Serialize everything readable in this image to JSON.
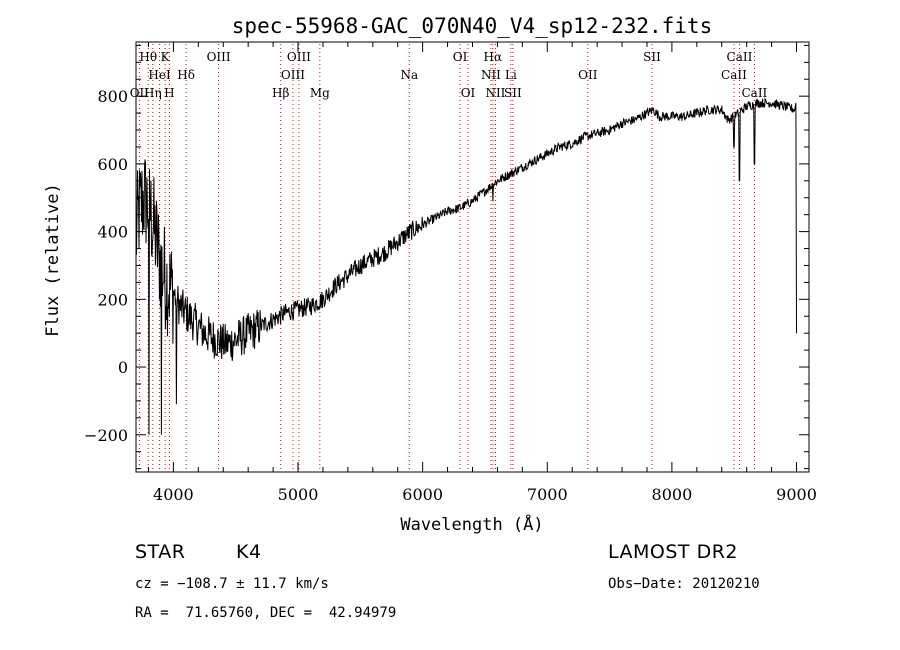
{
  "chart_data": {
    "type": "line",
    "title": "spec-55968-GAC_070N40_V4_sp12-232.fits",
    "xlabel": "Wavelength (Å)",
    "ylabel": "Flux (relative)",
    "xlim": [
      3700,
      9100
    ],
    "ylim": [
      -310,
      960
    ],
    "x_ticks": [
      4000,
      5000,
      6000,
      7000,
      8000,
      9000
    ],
    "y_ticks": [
      -200,
      0,
      200,
      400,
      600,
      800
    ],
    "grid": false,
    "line_color": "#000000",
    "marker_color": "#dd0000",
    "spectral_lines": [
      {
        "label": "Hθ",
        "wavelength": 3798,
        "row": 1
      },
      {
        "label": "K",
        "wavelength": 3934,
        "row": 1
      },
      {
        "label": "HeI",
        "wavelength": 3889,
        "row": 2
      },
      {
        "label": "Hδ",
        "wavelength": 4102,
        "row": 2
      },
      {
        "label": "OII",
        "wavelength": 3727,
        "row": 3
      },
      {
        "label": "Hη",
        "wavelength": 3835,
        "row": 3
      },
      {
        "label": "H",
        "wavelength": 3968,
        "row": 3
      },
      {
        "label": "OIII",
        "wavelength": 4363,
        "row": 1
      },
      {
        "label": "OIII",
        "wavelength": 5007,
        "row": 1
      },
      {
        "label": "OIII",
        "wavelength": 4959,
        "row": 2
      },
      {
        "label": "Hβ",
        "wavelength": 4861,
        "row": 3
      },
      {
        "label": "Mg",
        "wavelength": 5175,
        "row": 3
      },
      {
        "label": "Na",
        "wavelength": 5893,
        "row": 2
      },
      {
        "label": "OI",
        "wavelength": 6300,
        "row": 1
      },
      {
        "label": "OI",
        "wavelength": 6364,
        "row": 3
      },
      {
        "label": "Hα",
        "wavelength": 6563,
        "row": 1
      },
      {
        "label": "NII",
        "wavelength": 6548,
        "row": 2
      },
      {
        "label": "Li",
        "wavelength": 6708,
        "row": 2
      },
      {
        "label": "NII",
        "wavelength": 6584,
        "row": 3
      },
      {
        "label": "SII",
        "wavelength": 6724,
        "row": 3
      },
      {
        "label": "OII",
        "wavelength": 7325,
        "row": 2
      },
      {
        "label": "SII",
        "wavelength": 7840,
        "row": 1
      },
      {
        "label": "CaII",
        "wavelength": 8542,
        "row": 1
      },
      {
        "label": "CaII",
        "wavelength": 8498,
        "row": 2
      },
      {
        "label": "CaII",
        "wavelength": 8662,
        "row": 3
      }
    ],
    "spectrum_anchors": {
      "x": [
        3700,
        3720,
        3760,
        3800,
        3850,
        3900,
        3950,
        4000,
        4050,
        4100,
        4150,
        4200,
        4250,
        4300,
        4350,
        4400,
        4450,
        4500,
        4600,
        4700,
        4800,
        4900,
        5000,
        5100,
        5200,
        5300,
        5400,
        5500,
        5600,
        5700,
        5800,
        5900,
        6000,
        6100,
        6200,
        6300,
        6400,
        6500,
        6600,
        6700,
        6800,
        6900,
        7000,
        7100,
        7200,
        7300,
        7400,
        7500,
        7600,
        7700,
        7800,
        7850,
        7900,
        8000,
        8100,
        8200,
        8300,
        8400,
        8450,
        8500,
        8600,
        8700,
        8800,
        8900,
        8990,
        9000
      ],
      "y": [
        380,
        450,
        500,
        480,
        400,
        300,
        250,
        220,
        180,
        160,
        140,
        120,
        100,
        90,
        80,
        70,
        70,
        80,
        100,
        120,
        140,
        160,
        170,
        180,
        200,
        240,
        270,
        300,
        320,
        340,
        370,
        400,
        420,
        440,
        460,
        470,
        490,
        520,
        550,
        570,
        590,
        610,
        630,
        650,
        660,
        680,
        690,
        700,
        720,
        730,
        750,
        760,
        740,
        740,
        740,
        750,
        760,
        760,
        730,
        740,
        770,
        780,
        780,
        770,
        760,
        100
      ]
    },
    "spectrum_absorptions": [
      {
        "x": 3805,
        "y": -200
      },
      {
        "x": 3905,
        "y": -200
      },
      {
        "x": 4025,
        "y": -110
      },
      {
        "x": 5893,
        "y": 380
      },
      {
        "x": 6563,
        "y": 490
      },
      {
        "x": 8498,
        "y": 650
      },
      {
        "x": 8542,
        "y": 550
      },
      {
        "x": 8662,
        "y": 600
      }
    ]
  },
  "info": {
    "object_class": "STAR",
    "subclass": "K4",
    "survey": "LAMOST DR2",
    "cz": "cz = −108.7 ± 11.7 km/s",
    "obs_date": "Obs−Date: 20120210",
    "coords": "RA =  71.65760, DEC =  42.94979"
  }
}
